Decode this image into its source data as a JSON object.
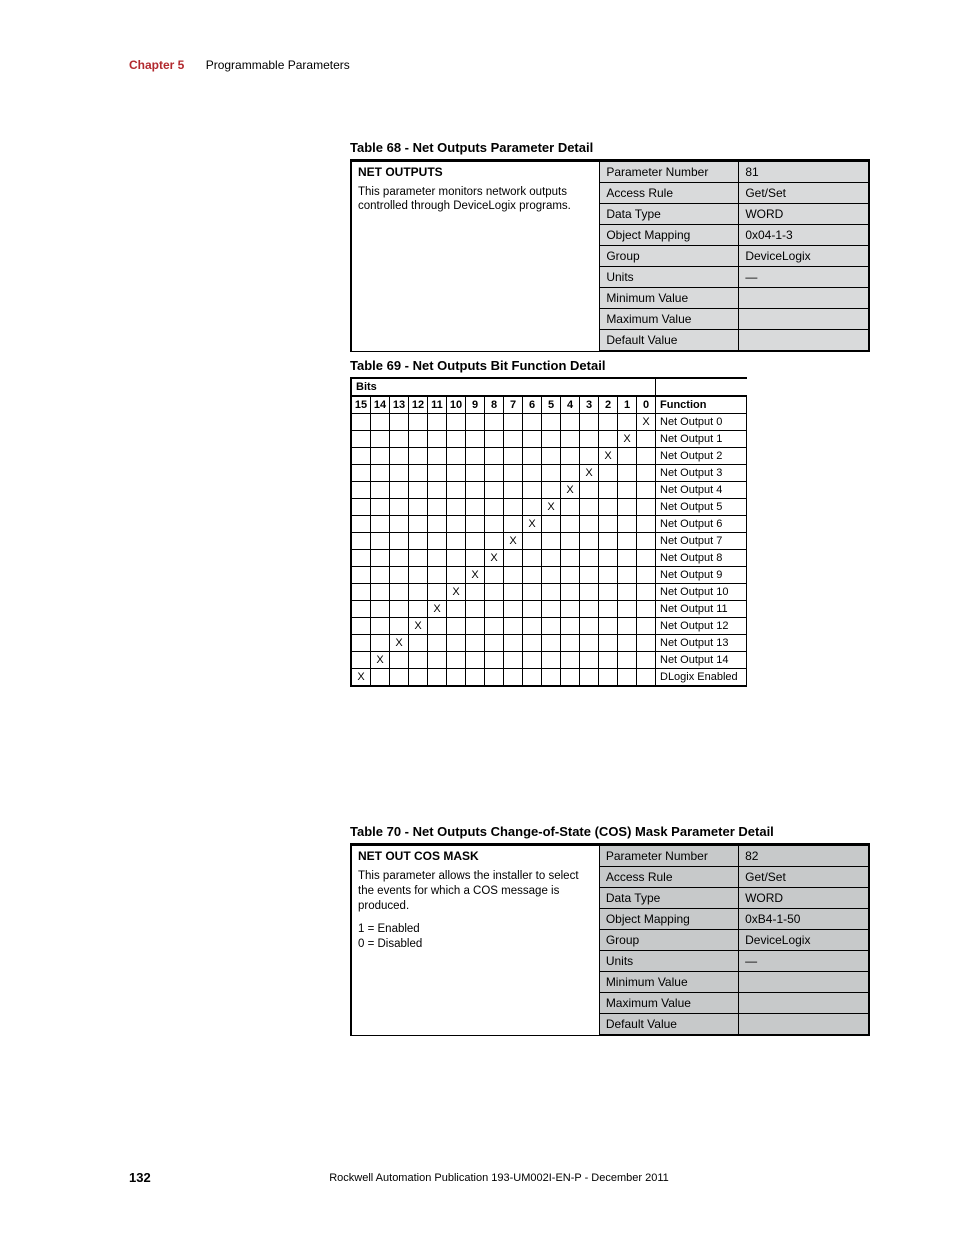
{
  "header": {
    "chapter_label": "Chapter 5",
    "chapter_title": "Programmable Parameters"
  },
  "table68": {
    "title": "Table 68 - Net Outputs Parameter Detail",
    "heading": "NET OUTPUTS",
    "description": "This parameter monitors network outputs controlled through DeviceLogix programs.",
    "background_color": "#d9dadb",
    "rows": [
      {
        "prop": "Parameter Number",
        "val": "81"
      },
      {
        "prop": "Access Rule",
        "val": "Get/Set"
      },
      {
        "prop": "Data Type",
        "val": "WORD"
      },
      {
        "prop": "Object Mapping",
        "val": "0x04-1-3"
      },
      {
        "prop": "Group",
        "val": "DeviceLogix"
      },
      {
        "prop": "Units",
        "val": "—"
      },
      {
        "prop": "Minimum Value",
        "val": ""
      },
      {
        "prop": "Maximum Value",
        "val": ""
      },
      {
        "prop": "Default Value",
        "val": ""
      }
    ]
  },
  "table69": {
    "title": "Table 69 - Net Outputs Bit Function Detail",
    "bits_label": "Bits",
    "function_label": "Function",
    "bit_headers": [
      "15",
      "14",
      "13",
      "12",
      "11",
      "10",
      "9",
      "8",
      "7",
      "6",
      "5",
      "4",
      "3",
      "2",
      "1",
      "0"
    ],
    "rows": [
      {
        "bit": 0,
        "func": "Net Output 0"
      },
      {
        "bit": 1,
        "func": "Net Output 1"
      },
      {
        "bit": 2,
        "func": "Net Output 2"
      },
      {
        "bit": 3,
        "func": "Net Output 3"
      },
      {
        "bit": 4,
        "func": "Net Output 4"
      },
      {
        "bit": 5,
        "func": "Net Output 5"
      },
      {
        "bit": 6,
        "func": "Net Output 6"
      },
      {
        "bit": 7,
        "func": "Net Output 7"
      },
      {
        "bit": 8,
        "func": "Net Output 8"
      },
      {
        "bit": 9,
        "func": "Net Output 9"
      },
      {
        "bit": 10,
        "func": "Net Output 10"
      },
      {
        "bit": 11,
        "func": "Net Output 11"
      },
      {
        "bit": 12,
        "func": "Net Output 12"
      },
      {
        "bit": 13,
        "func": "Net Output 13"
      },
      {
        "bit": 14,
        "func": "Net Output 14"
      },
      {
        "bit": 15,
        "func": "DLogix Enabled"
      }
    ]
  },
  "table70": {
    "title": "Table 70 - Net Outputs Change-of-State (COS) Mask Parameter Detail",
    "heading": "NET OUT COS MASK",
    "description": "This parameter allows the installer to select the events for which a COS message is produced.",
    "legend1": "1 = Enabled",
    "legend0": "0 = Disabled",
    "background_color": "#c7c9ca",
    "rows": [
      {
        "prop": "Parameter Number",
        "val": "82"
      },
      {
        "prop": "Access Rule",
        "val": "Get/Set"
      },
      {
        "prop": "Data Type",
        "val": "WORD"
      },
      {
        "prop": "Object Mapping",
        "val": "0xB4-1-50"
      },
      {
        "prop": "Group",
        "val": "DeviceLogix"
      },
      {
        "prop": "Units",
        "val": "—"
      },
      {
        "prop": "Minimum Value",
        "val": ""
      },
      {
        "prop": "Maximum Value",
        "val": ""
      },
      {
        "prop": "Default Value",
        "val": ""
      }
    ]
  },
  "footer": {
    "page_number": "132",
    "publication": "Rockwell Automation Publication 193-UM002I-EN-P - December 2011"
  }
}
